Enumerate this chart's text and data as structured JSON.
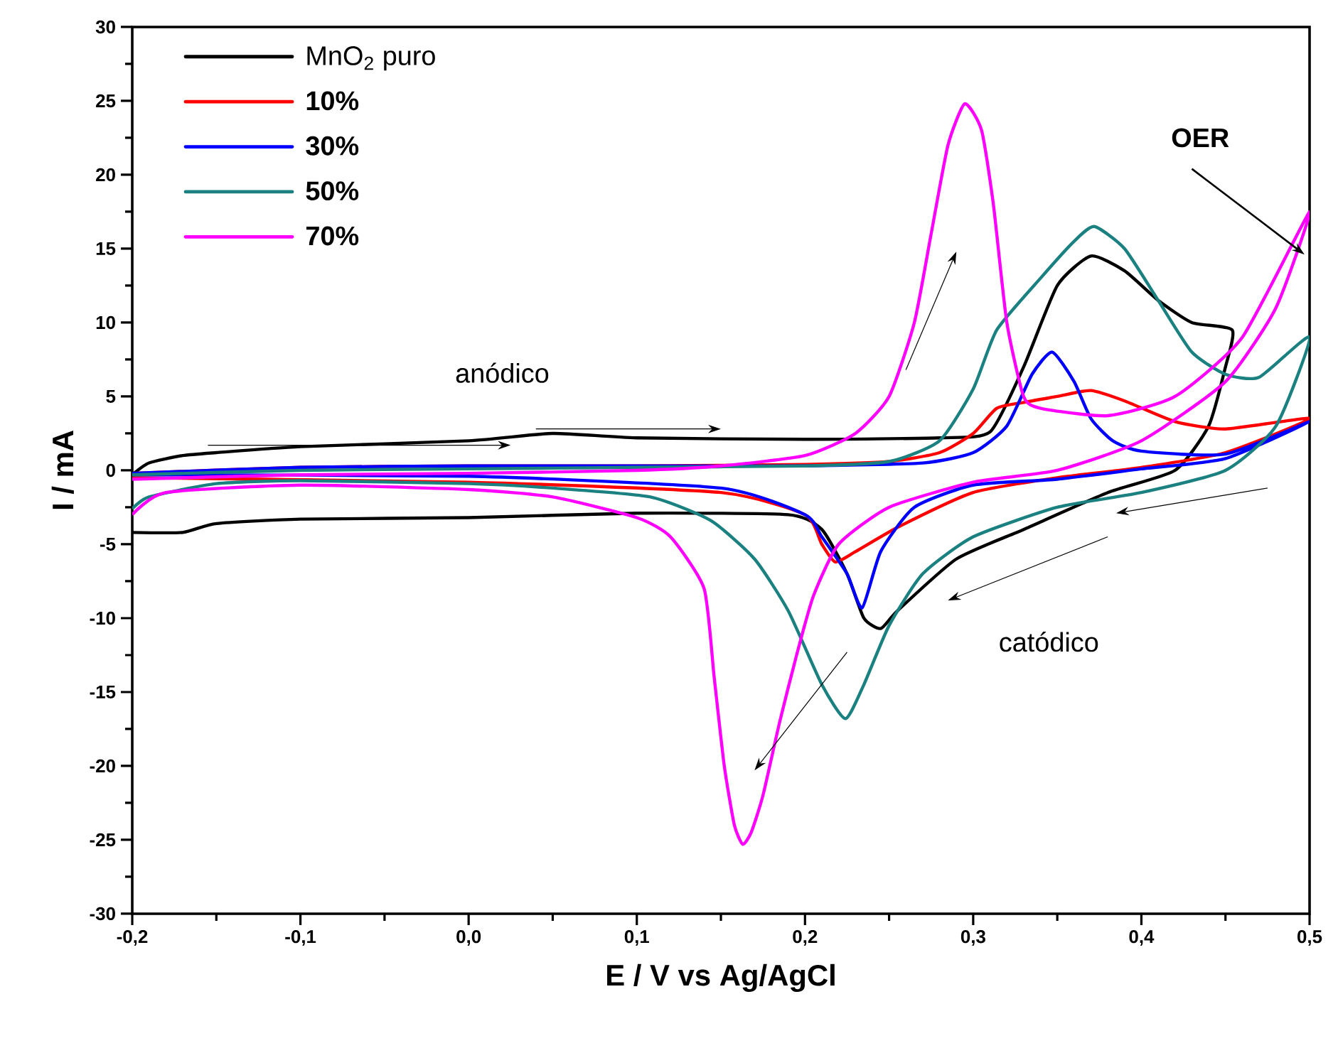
{
  "chart_data": {
    "type": "line",
    "xlabel": "E / V vs Ag/AgCl",
    "ylabel": "I / mA",
    "xlim": [
      -0.2,
      0.5
    ],
    "ylim": [
      -30,
      30
    ],
    "xticks": [
      {
        "value": -0.2,
        "label": "-0,2"
      },
      {
        "value": -0.1,
        "label": "-0,1"
      },
      {
        "value": 0.0,
        "label": "0,0"
      },
      {
        "value": 0.1,
        "label": "0,1"
      },
      {
        "value": 0.2,
        "label": "0,2"
      },
      {
        "value": 0.3,
        "label": "0,3"
      },
      {
        "value": 0.4,
        "label": "0,4"
      },
      {
        "value": 0.5,
        "label": "0,5"
      }
    ],
    "yticks": [
      -30,
      -25,
      -20,
      -15,
      -10,
      -5,
      0,
      5,
      10,
      15,
      20,
      25,
      30
    ],
    "legend": "top left",
    "grid": false,
    "line_style": "solid",
    "marker": "none",
    "annotations": [
      "anódico",
      "catódico",
      {
        "text": "OER",
        "x": 0.497,
        "y": 14.6
      }
    ],
    "series": [
      {
        "name": "MnO$_{2}$ puro",
        "color": "#000000",
        "x": [
          -0.2,
          -0.19,
          -0.17,
          -0.15,
          -0.1,
          0.0,
          0.05,
          0.1,
          0.2,
          0.28,
          0.31,
          0.33,
          0.35,
          0.37,
          0.39,
          0.41,
          0.43,
          0.454,
          0.45,
          0.44,
          0.42,
          0.38,
          0.33,
          0.29,
          0.255,
          0.245,
          0.235,
          0.225,
          0.21,
          0.19,
          0.1,
          0.0,
          -0.1,
          -0.15,
          -0.17,
          -0.2
        ],
        "values": [
          -0.3,
          0.5,
          1.0,
          1.2,
          1.6,
          2.0,
          2.5,
          2.2,
          2.1,
          2.2,
          2.6,
          7.0,
          12.5,
          14.5,
          13.5,
          11.5,
          10.0,
          9.5,
          7.0,
          3.0,
          0.0,
          -1.5,
          -4.0,
          -6.0,
          -9.5,
          -10.7,
          -10.0,
          -7.0,
          -4.0,
          -3.0,
          -2.9,
          -3.2,
          -3.3,
          -3.6,
          -4.2,
          -4.2
        ]
      },
      {
        "name": "10%",
        "color": "#ff0000",
        "x": [
          -0.2,
          -0.1,
          0.0,
          0.1,
          0.2,
          0.25,
          0.28,
          0.3,
          0.314,
          0.33,
          0.35,
          0.37,
          0.39,
          0.42,
          0.45,
          0.5,
          0.45,
          0.4,
          0.35,
          0.3,
          0.256,
          0.23,
          0.218,
          0.21,
          0.2,
          0.15,
          0.0,
          -0.2
        ],
        "values": [
          -0.2,
          0.2,
          0.3,
          0.3,
          0.4,
          0.6,
          1.2,
          2.5,
          4.2,
          4.6,
          5.0,
          5.4,
          4.7,
          3.3,
          2.8,
          3.5,
          1.2,
          0.2,
          -0.5,
          -1.5,
          -3.8,
          -5.5,
          -6.2,
          -5.0,
          -3.0,
          -1.5,
          -0.8,
          -0.5
        ]
      },
      {
        "name": "30%",
        "color": "#0000ff",
        "x": [
          -0.2,
          -0.1,
          0.0,
          0.1,
          0.2,
          0.27,
          0.3,
          0.32,
          0.335,
          0.347,
          0.36,
          0.37,
          0.383,
          0.4,
          0.45,
          0.5,
          0.45,
          0.4,
          0.35,
          0.3,
          0.265,
          0.245,
          0.234,
          0.225,
          0.21,
          0.2,
          0.15,
          0.0,
          -0.2
        ],
        "values": [
          -0.2,
          0.2,
          0.3,
          0.3,
          0.3,
          0.5,
          1.2,
          3.0,
          6.5,
          8.0,
          6.0,
          3.5,
          2.0,
          1.3,
          1.1,
          3.3,
          0.8,
          0.1,
          -0.6,
          -1.0,
          -2.5,
          -5.5,
          -9.3,
          -7.0,
          -4.5,
          -3.0,
          -1.2,
          -0.4,
          -0.3
        ]
      },
      {
        "name": "50%",
        "color": "#1a8080",
        "x": [
          -0.2,
          -0.1,
          0.0,
          0.1,
          0.2,
          0.25,
          0.28,
          0.3,
          0.314,
          0.34,
          0.36,
          0.372,
          0.39,
          0.41,
          0.43,
          0.45,
          0.47,
          0.5,
          0.48,
          0.45,
          0.4,
          0.35,
          0.3,
          0.27,
          0.25,
          0.235,
          0.224,
          0.21,
          0.19,
          0.17,
          0.144,
          0.108,
          0.05,
          0.0,
          -0.1,
          -0.15,
          -0.19,
          -0.2
        ],
        "values": [
          -0.3,
          0.0,
          0.1,
          0.2,
          0.3,
          0.6,
          2.0,
          5.5,
          9.5,
          13.0,
          15.5,
          16.5,
          15.0,
          11.5,
          8.0,
          6.5,
          6.3,
          9.0,
          3.0,
          0.0,
          -1.5,
          -2.5,
          -4.5,
          -7.0,
          -10.5,
          -14.5,
          -16.8,
          -14.5,
          -9.5,
          -6.0,
          -3.4,
          -1.8,
          -1.2,
          -0.9,
          -0.7,
          -0.9,
          -1.8,
          -2.6
        ]
      },
      {
        "name": "70%",
        "color": "#ff00ff",
        "x": [
          -0.2,
          -0.1,
          0.0,
          0.1,
          0.15,
          0.2,
          0.23,
          0.25,
          0.265,
          0.275,
          0.285,
          0.295,
          0.305,
          0.312,
          0.32,
          0.33,
          0.34,
          0.38,
          0.42,
          0.46,
          0.5,
          0.48,
          0.45,
          0.4,
          0.35,
          0.3,
          0.25,
          0.22,
          0.205,
          0.195,
          0.185,
          0.175,
          0.168,
          0.163,
          0.158,
          0.152,
          0.146,
          0.14,
          0.12,
          0.1,
          0.05,
          0.0,
          -0.1,
          -0.18,
          -0.2
        ],
        "values": [
          -0.6,
          -0.3,
          -0.2,
          0.0,
          0.3,
          1.0,
          2.5,
          5.0,
          10.0,
          16.0,
          22.0,
          24.8,
          23.0,
          18.0,
          10.0,
          5.0,
          4.2,
          3.7,
          5.0,
          9.0,
          17.5,
          11.0,
          6.0,
          2.0,
          0.0,
          -0.8,
          -2.5,
          -5.0,
          -8.5,
          -12.5,
          -17.0,
          -22.0,
          -24.5,
          -25.3,
          -24.0,
          -20.0,
          -14.0,
          -8.0,
          -4.5,
          -3.2,
          -1.8,
          -1.3,
          -1.0,
          -1.5,
          -3.0
        ]
      }
    ]
  }
}
